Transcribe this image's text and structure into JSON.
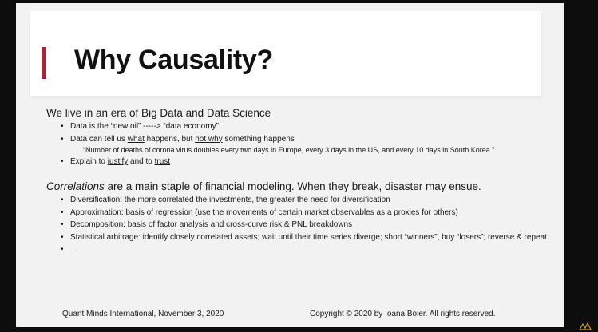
{
  "slide": {
    "title": "Why Causality?",
    "accent_color": "#9e2a3e",
    "section1": {
      "heading": "We live in an era of Big Data and Data Science",
      "bullet1": "Data is the “new oil” -----> “data economy”",
      "bullet2": {
        "pre": "Data can tell us ",
        "what": "what",
        "mid": " happens, but ",
        "not_why": "not why",
        "post": " something happens",
        "quote": "“Number of deaths of corona virus doubles every two days in Europe, every 3 days in the US, and every 10 days in South Korea.”"
      },
      "bullet3": {
        "pre": "Explain to ",
        "justify": "justify",
        "mid": " and to ",
        "trust": "trust"
      }
    },
    "section2": {
      "heading_italic": "Correlations",
      "heading_rest": " are a main staple of financial modeling. When they break, disaster may ensue.",
      "bullets": [
        "Diversification: the more correlated the investments, the greater the need for diversification",
        "Approximation: basis of regression (use the movements of certain market observables as a proxies for others)",
        "Decomposition: basis of factor analysis and cross-curve risk & PNL breakdowns",
        "Statistical arbitrage: identify closely correlated assets; wait until their time series diverge; short “winners”, buy “losers”; reverse & repeat",
        "..."
      ]
    },
    "footer": {
      "left": "Quant Minds International, November 3, 2020",
      "right": "Copyright © 2020 by Ioana Boier. All rights reserved."
    }
  }
}
